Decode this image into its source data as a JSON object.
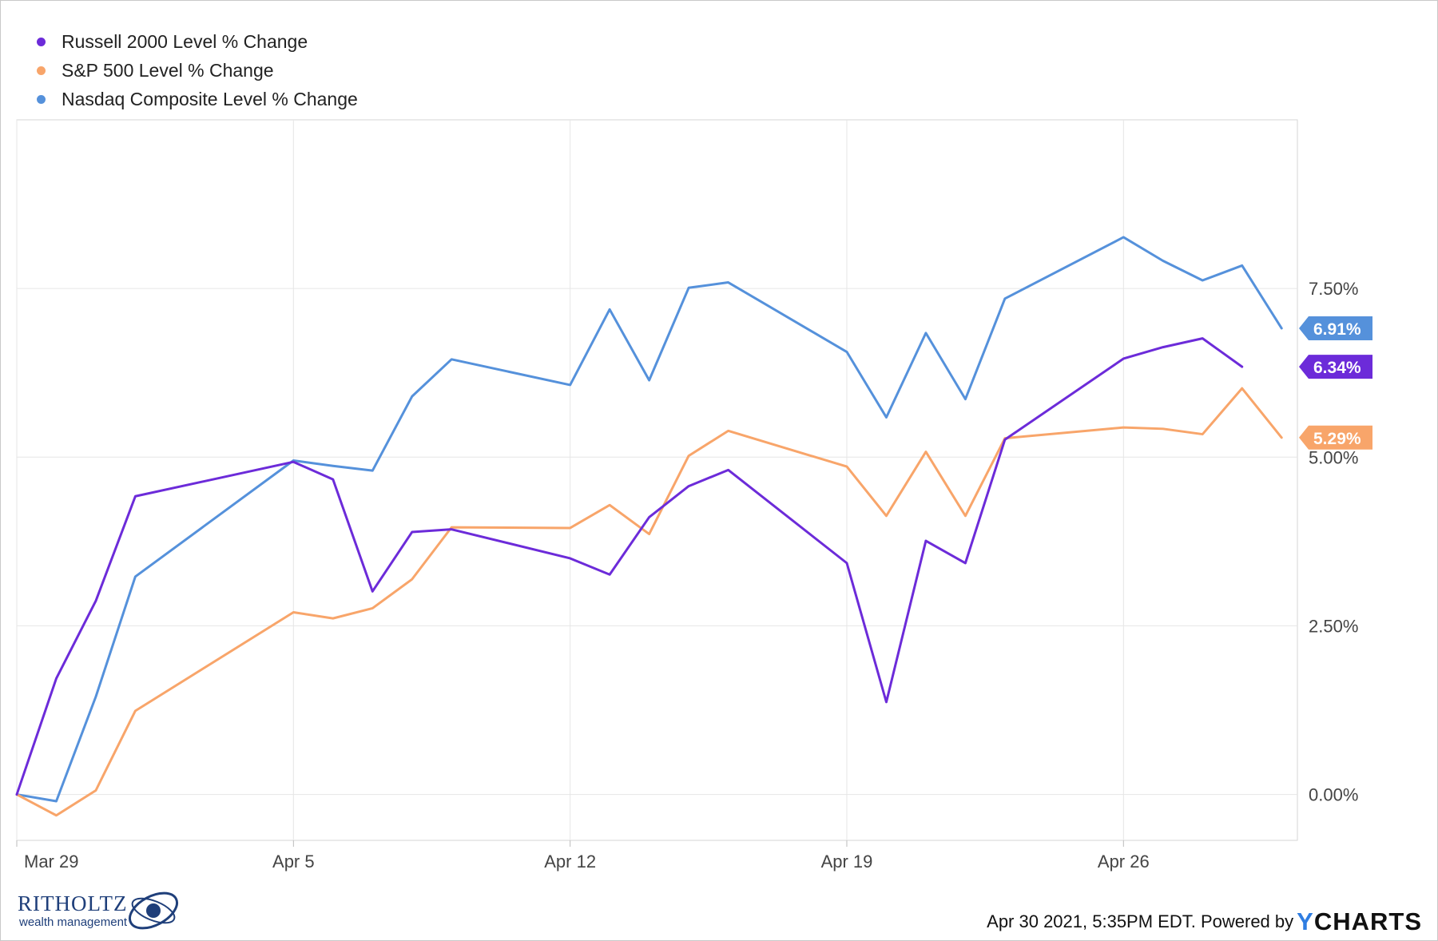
{
  "chart_data": {
    "type": "line",
    "x": [
      "2021-03-29",
      "2021-03-30",
      "2021-03-31",
      "2021-04-01",
      "2021-04-05",
      "2021-04-06",
      "2021-04-07",
      "2021-04-08",
      "2021-04-09",
      "2021-04-12",
      "2021-04-13",
      "2021-04-14",
      "2021-04-15",
      "2021-04-16",
      "2021-04-19",
      "2021-04-20",
      "2021-04-21",
      "2021-04-22",
      "2021-04-23",
      "2021-04-26",
      "2021-04-27",
      "2021-04-28",
      "2021-04-29",
      "2021-04-30"
    ],
    "series": [
      {
        "name": "Russell 2000 Level % Change",
        "color": "#6c2bd9",
        "values": [
          0.0,
          1.72,
          2.87,
          4.42,
          4.93,
          4.67,
          3.01,
          3.89,
          3.93,
          3.5,
          3.26,
          4.11,
          4.57,
          4.81,
          3.43,
          1.37,
          3.76,
          3.43,
          5.26,
          6.46,
          6.63,
          6.76,
          6.34,
          null
        ],
        "end_label": "6.34%"
      },
      {
        "name": "S&P 500 Level % Change",
        "color": "#f8a56a",
        "values": [
          0.0,
          -0.31,
          0.06,
          1.24,
          2.7,
          2.61,
          2.76,
          3.19,
          3.96,
          3.95,
          4.29,
          3.86,
          5.02,
          5.39,
          4.86,
          4.13,
          5.08,
          4.13,
          5.28,
          5.44,
          5.42,
          5.34,
          6.02,
          5.29
        ],
        "end_label": "5.29%"
      },
      {
        "name": "Nasdaq Composite Level % Change",
        "color": "#5591db",
        "values": [
          0.0,
          -0.1,
          1.45,
          3.23,
          4.95,
          4.87,
          4.8,
          5.9,
          6.45,
          6.07,
          7.19,
          6.14,
          7.51,
          7.59,
          6.56,
          5.59,
          6.84,
          5.86,
          7.35,
          8.26,
          7.91,
          7.62,
          7.84,
          6.91
        ],
        "end_label": "6.91%"
      }
    ],
    "x_ticks": [
      "Mar 29",
      "Apr 5",
      "Apr 12",
      "Apr 19",
      "Apr 26"
    ],
    "y_ticks": [
      "0.00%",
      "2.50%",
      "5.00%",
      "7.50%"
    ],
    "ylim": [
      -0.68,
      10.0
    ],
    "legend_position": "top-left",
    "grid": true,
    "title": "",
    "xlabel": "",
    "ylabel": ""
  },
  "footer": {
    "timestamp": "Apr 30 2021, 5:35PM EDT. Powered by",
    "brand_y": "Y",
    "brand_rest": "CHARTS"
  },
  "logo": {
    "name": "RITHOLTZ",
    "subtitle": "wealth management"
  }
}
